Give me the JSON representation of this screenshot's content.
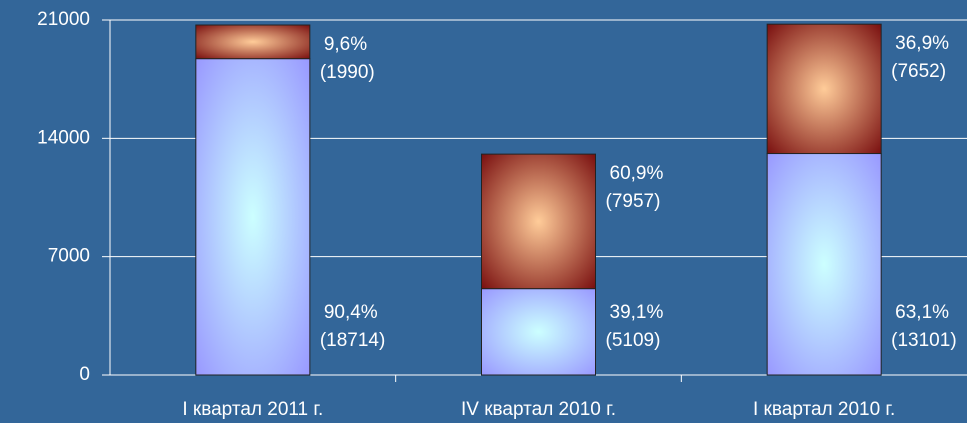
{
  "chart_data": {
    "type": "stacked_bar",
    "categories": [
      "I квартал 2011 г.",
      "IV квартал 2010 г.",
      "I квартал 2010 г."
    ],
    "series": [
      {
        "color": "#9999ff",
        "values": [
          18714,
          5109,
          13101
        ],
        "value_labels": [
          "(18714)",
          "(5109)",
          "(13101)"
        ],
        "share_labels": [
          "90,4%",
          "39,1%",
          "63,1%"
        ]
      },
      {
        "color": "#993333",
        "values": [
          1990,
          7957,
          7652
        ],
        "value_labels": [
          "(1990)",
          "(7957)",
          "(7652)"
        ],
        "share_labels": [
          "9,6%",
          "60,9%",
          "36,9%"
        ]
      }
    ],
    "ylim": [
      0,
      21000
    ],
    "yticks": [
      0,
      7000,
      14000,
      21000
    ],
    "grid": true
  }
}
